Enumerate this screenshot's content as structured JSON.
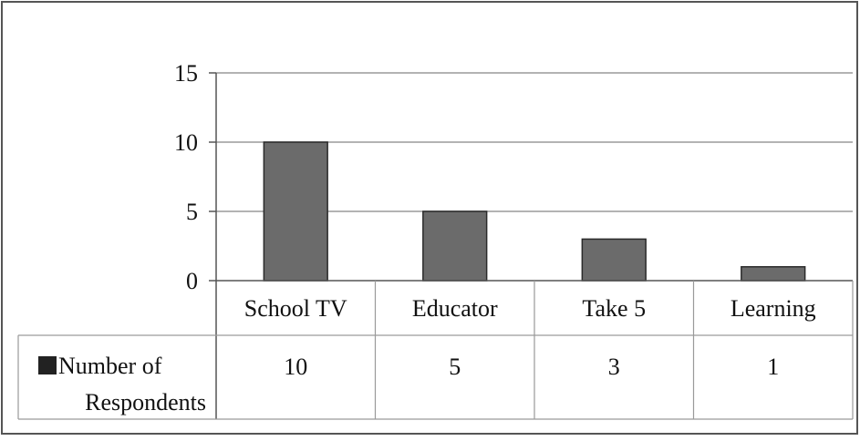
{
  "chart_data": {
    "type": "bar",
    "title": "",
    "xlabel": "",
    "ylabel": "",
    "ylim": [
      0,
      15
    ],
    "yticks": [
      0,
      5,
      10,
      15
    ],
    "categories": [
      "School TV",
      "Educator",
      "Take 5",
      "Learning"
    ],
    "series": [
      {
        "name": "Number of Respondents",
        "values": [
          10,
          5,
          3,
          1
        ]
      }
    ],
    "legend_lines": [
      "Number of",
      "Respondents"
    ],
    "data_table": true,
    "grid": "horizontal",
    "colors": {
      "bar": "#6b6b6b",
      "bar_stroke": "#2a2a2a",
      "grid": "#9a9a9a",
      "legend_key": "#222222",
      "frame": "#555555"
    }
  }
}
